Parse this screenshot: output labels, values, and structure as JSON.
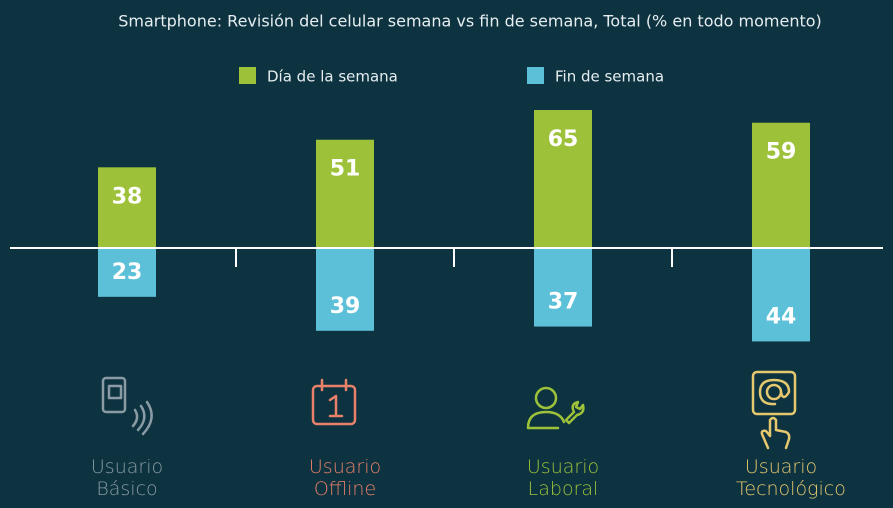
{
  "chart_data": {
    "type": "bar",
    "title": "Smartphone: Revisión del celular semana  vs fin de semana, Total (% en todo momento)",
    "categories": [
      "Usuario Básico",
      "Usuario Offline",
      "Usuario Laboral",
      "Usuario Tecnológico"
    ],
    "category_colors": [
      "#8a9ba4",
      "#e8806a",
      "#9dc23a",
      "#e6c86e"
    ],
    "series": [
      {
        "name": "Día de la semana",
        "color": "#9dc23a",
        "values": [
          38,
          51,
          65,
          59
        ]
      },
      {
        "name": "Fin de semana",
        "color": "#5bc0d8",
        "values": [
          23,
          39,
          37,
          44
        ]
      }
    ]
  }
}
